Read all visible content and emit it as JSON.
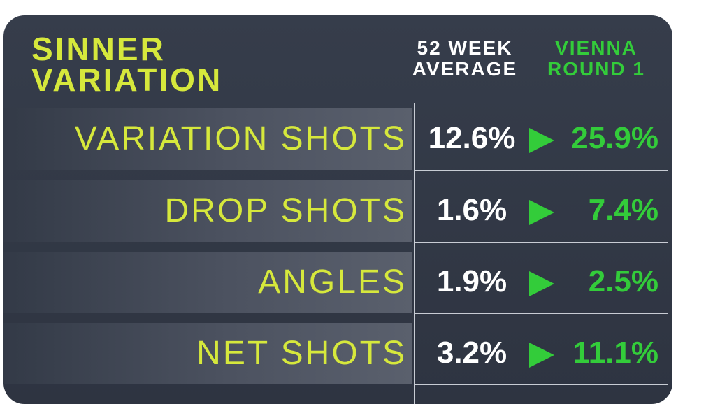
{
  "header": {
    "title_lines": [
      "SINNER",
      "VARIATION"
    ],
    "columns": [
      {
        "lines": [
          "52 WEEK",
          "AVERAGE"
        ]
      },
      {
        "lines": [
          "VIENNA",
          "ROUND 1"
        ]
      }
    ]
  },
  "table": {
    "rows": [
      [
        "VARIATION SHOTS",
        "12.6%",
        "25.9%"
      ],
      [
        "DROP SHOTS",
        "1.6%",
        "7.4%"
      ],
      [
        "ANGLES",
        "1.9%",
        "2.5%"
      ],
      [
        "NET SHOTS",
        "3.2%",
        "11.1%"
      ]
    ]
  }
}
